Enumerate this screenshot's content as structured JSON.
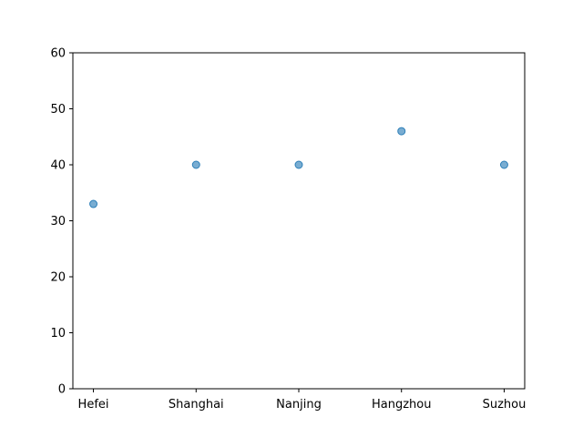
{
  "chart_data": {
    "type": "scatter",
    "categories": [
      "Hefei",
      "Shanghai",
      "Nanjing",
      "Hangzhou",
      "Suzhou"
    ],
    "values": [
      33,
      40,
      40,
      46,
      40
    ],
    "ylim": [
      0,
      60
    ],
    "yticks": [
      0,
      10,
      20,
      30,
      40,
      50,
      60
    ],
    "grid": false,
    "marker_color": "#1f77b4",
    "marker_opacity": 0.6
  }
}
